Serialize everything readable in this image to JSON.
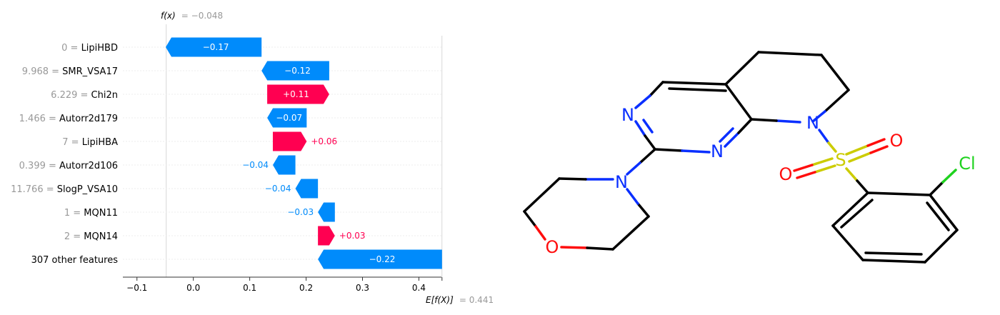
{
  "chart_data": {
    "type": "waterfall",
    "features": [
      {
        "value": "0",
        "name": "LipiHBD",
        "contribution": -0.17,
        "label": "−0.17"
      },
      {
        "value": "9.968",
        "name": "SMR_VSA17",
        "contribution": -0.12,
        "label": "−0.12"
      },
      {
        "value": "6.229",
        "name": "Chi2n",
        "contribution": 0.11,
        "label": "+0.11"
      },
      {
        "value": "1.466",
        "name": "Autorr2d179",
        "contribution": -0.07,
        "label": "−0.07"
      },
      {
        "value": "7",
        "name": "LipiHBA",
        "contribution": 0.06,
        "label": "+0.06"
      },
      {
        "value": "0.399",
        "name": "Autorr2d106",
        "contribution": -0.04,
        "label": "−0.04"
      },
      {
        "value": "11.766",
        "name": "SlogP_VSA10",
        "contribution": -0.04,
        "label": "−0.04"
      },
      {
        "value": "1",
        "name": "MQN11",
        "contribution": -0.03,
        "label": "−0.03"
      },
      {
        "value": "2",
        "name": "MQN14",
        "contribution": 0.03,
        "label": "+0.03"
      },
      {
        "value": "",
        "name": "307 other features",
        "contribution": -0.22,
        "label": "−0.22"
      }
    ],
    "fx": {
      "label": "f(x)",
      "value_text": "= −0.048",
      "value": -0.048
    },
    "base": {
      "label": "E[f(X)]",
      "value_text": "= 0.441",
      "value": 0.441
    },
    "xticks": [
      -0.1,
      0.0,
      0.1,
      0.2,
      0.3,
      0.4
    ],
    "xtick_labels": [
      "−0.1",
      "0.0",
      "0.1",
      "0.2",
      "0.3",
      "0.4"
    ],
    "xlim": [
      -0.125,
      0.44
    ],
    "colors": {
      "negative": "#008bfb",
      "positive": "#ff0051"
    }
  },
  "molecule": {
    "atoms": {
      "n_top": "N",
      "n_mid": "N",
      "n_ring": "N",
      "n_morph": "N",
      "o_morph": "O",
      "s": "S",
      "o1": "O",
      "o2": "O",
      "cl": "Cl"
    },
    "colors": {
      "N": "#0a2fff",
      "O": "#ff0d0d",
      "S": "#cccc00",
      "Cl": "#1fd21f",
      "bond": "#000000"
    }
  }
}
